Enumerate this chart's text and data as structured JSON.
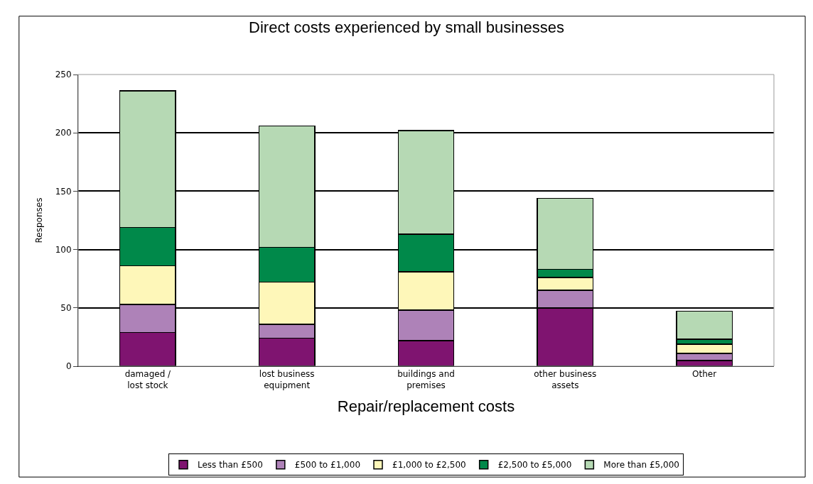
{
  "chart_data": {
    "type": "bar",
    "stacked": true,
    "title": "Direct costs experienced by small businesses",
    "xlabel": "Repair/replacement costs",
    "ylabel": "Responses",
    "categories": [
      "damaged /\nlost stock",
      "lost business\nequipment",
      "buildings and\npremises",
      "other business\nassets",
      "Other"
    ],
    "series": [
      {
        "name": "Less than £500",
        "color": "#7f1470",
        "values": [
          29,
          24,
          22,
          50,
          5
        ]
      },
      {
        "name": "£500 to £1,000",
        "color": "#ae82b8",
        "values": [
          24,
          12,
          26,
          15,
          6
        ]
      },
      {
        "name": "£1,000 to £2,500",
        "color": "#fef7b9",
        "values": [
          33,
          36,
          33,
          11,
          8
        ]
      },
      {
        "name": "£2,500 to £5,000",
        "color": "#00894a",
        "values": [
          33,
          30,
          32,
          7,
          4
        ]
      },
      {
        "name": "More than £5,000",
        "color": "#b6d9b4",
        "values": [
          117,
          104,
          89,
          61,
          24
        ]
      }
    ],
    "ylim": [
      0,
      250
    ],
    "yticks": [
      0,
      50,
      100,
      150,
      200,
      250
    ],
    "grid": "y",
    "legend": "bottom"
  }
}
